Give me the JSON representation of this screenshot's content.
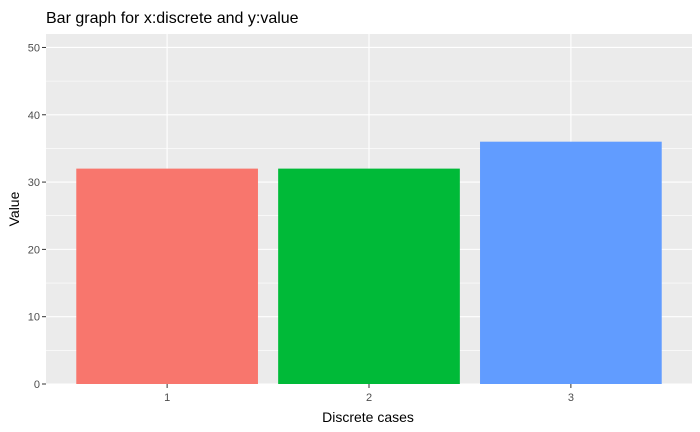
{
  "chart_data": {
    "type": "bar",
    "title": "Bar graph for x:discrete and y:value",
    "xlabel": "Discrete cases",
    "ylabel": "Value",
    "categories": [
      "1",
      "2",
      "3"
    ],
    "values": [
      32,
      32,
      36
    ],
    "colors": [
      "#F8766D",
      "#00BA38",
      "#619CFF"
    ],
    "ylim": [
      0,
      52
    ],
    "yticks": [
      0,
      10,
      20,
      30,
      40,
      50
    ],
    "panel_background": "#EBEBEB",
    "grid": true,
    "legend": "none"
  }
}
